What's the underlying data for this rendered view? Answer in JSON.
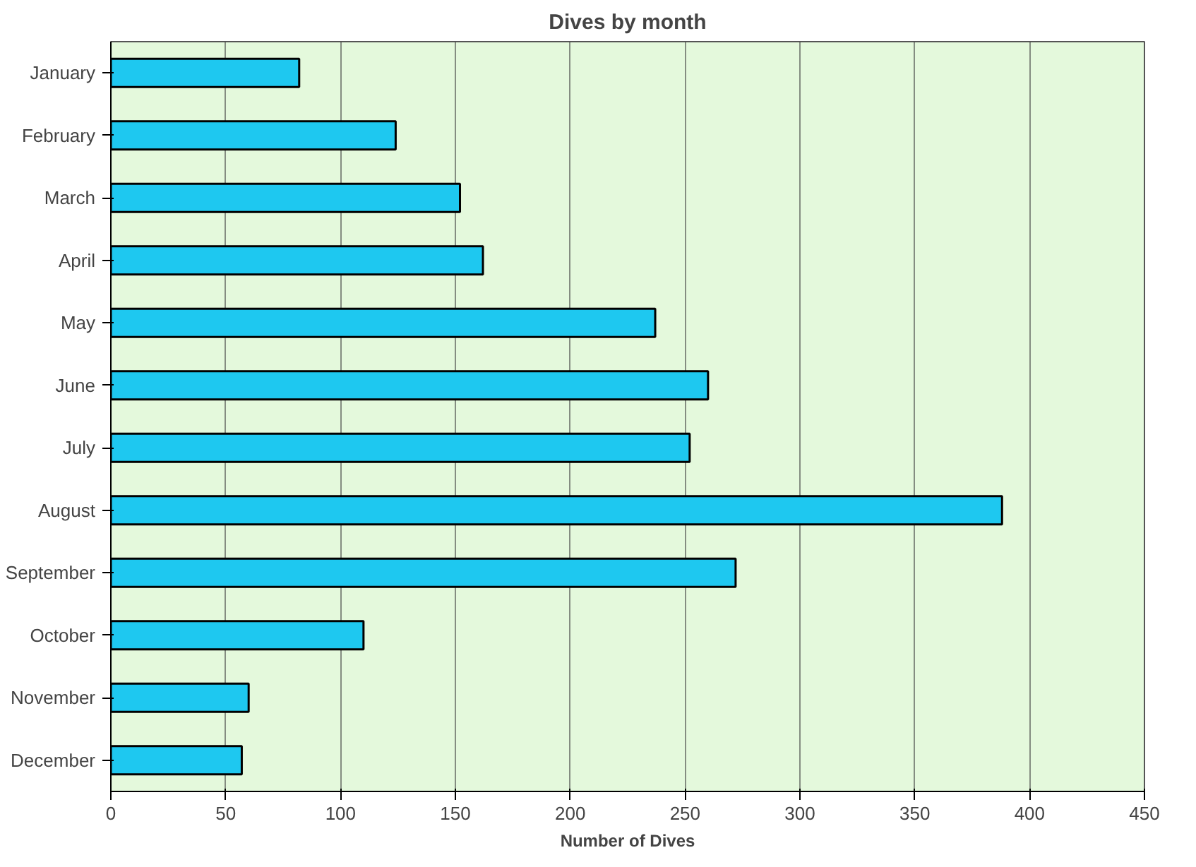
{
  "chart_data": {
    "type": "bar",
    "orientation": "horizontal",
    "title": "Dives by month",
    "xlabel": "Number of Dives",
    "categories": [
      "January",
      "February",
      "March",
      "April",
      "May",
      "June",
      "July",
      "August",
      "September",
      "October",
      "November",
      "December"
    ],
    "values": [
      82,
      124,
      152,
      162,
      237,
      260,
      252,
      388,
      272,
      110,
      60,
      57
    ],
    "color": "#1ec8f0",
    "xlim": [
      0,
      450
    ],
    "xticks": [
      0,
      50,
      100,
      150,
      200,
      250,
      300,
      350,
      400,
      450
    ],
    "grid": "x"
  }
}
